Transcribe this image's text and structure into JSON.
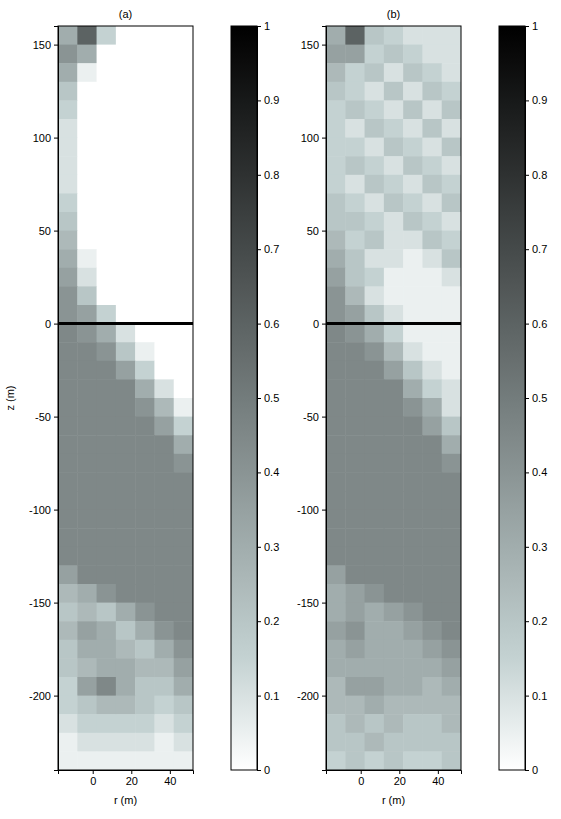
{
  "chart_data": [
    {
      "type": "heatmap",
      "title": "(a)",
      "xlabel": "r (m)",
      "ylabel": "z (m)",
      "xlim": [
        -18,
        52
      ],
      "ylim": [
        -240,
        160
      ],
      "xticks": [
        0,
        20,
        40
      ],
      "yticks": [
        -200,
        -150,
        -100,
        -50,
        0,
        50,
        100,
        150
      ],
      "hline": 0,
      "x": [
        -13,
        -3,
        7,
        17,
        27,
        37,
        47
      ],
      "y": [
        155,
        145,
        135,
        125,
        115,
        105,
        95,
        85,
        75,
        65,
        55,
        45,
        35,
        25,
        15,
        5,
        -5,
        -15,
        -25,
        -35,
        -45,
        -55,
        -65,
        -75,
        -85,
        -95,
        -105,
        -115,
        -125,
        -135,
        -145,
        -155,
        -165,
        -175,
        -185,
        -195,
        -205,
        -215,
        -225,
        -235
      ],
      "cells": [
        [
          0.3,
          0.6,
          0.15,
          0,
          0,
          0,
          0
        ],
        [
          0.4,
          0.3,
          0,
          0,
          0,
          0,
          0
        ],
        [
          0.3,
          0.05,
          0,
          0,
          0,
          0,
          0
        ],
        [
          0.2,
          0,
          0,
          0,
          0,
          0,
          0
        ],
        [
          0.15,
          0,
          0,
          0,
          0,
          0,
          0
        ],
        [
          0.1,
          0,
          0,
          0,
          0,
          0,
          0
        ],
        [
          0.1,
          0,
          0,
          0,
          0,
          0,
          0
        ],
        [
          0.1,
          0,
          0,
          0,
          0,
          0,
          0
        ],
        [
          0.1,
          0,
          0,
          0,
          0,
          0,
          0
        ],
        [
          0.15,
          0,
          0,
          0,
          0,
          0,
          0
        ],
        [
          0.2,
          0,
          0,
          0,
          0,
          0,
          0
        ],
        [
          0.25,
          0,
          0,
          0,
          0,
          0,
          0
        ],
        [
          0.3,
          0.05,
          0,
          0,
          0,
          0,
          0
        ],
        [
          0.35,
          0.1,
          0,
          0,
          0,
          0,
          0
        ],
        [
          0.4,
          0.2,
          0,
          0,
          0,
          0,
          0
        ],
        [
          0.4,
          0.35,
          0.15,
          0,
          0,
          0,
          0
        ],
        [
          0.45,
          0.4,
          0.3,
          0.1,
          0,
          0,
          0
        ],
        [
          0.45,
          0.45,
          0.4,
          0.2,
          0.05,
          0,
          0
        ],
        [
          0.45,
          0.45,
          0.45,
          0.35,
          0.15,
          0,
          0
        ],
        [
          0.45,
          0.45,
          0.45,
          0.45,
          0.3,
          0.1,
          0
        ],
        [
          0.45,
          0.45,
          0.45,
          0.45,
          0.4,
          0.25,
          0.05
        ],
        [
          0.45,
          0.45,
          0.45,
          0.45,
          0.45,
          0.35,
          0.15
        ],
        [
          0.45,
          0.45,
          0.45,
          0.45,
          0.45,
          0.45,
          0.3
        ],
        [
          0.45,
          0.45,
          0.45,
          0.45,
          0.45,
          0.45,
          0.4
        ],
        [
          0.45,
          0.45,
          0.45,
          0.45,
          0.45,
          0.45,
          0.45
        ],
        [
          0.45,
          0.45,
          0.45,
          0.45,
          0.45,
          0.45,
          0.45
        ],
        [
          0.45,
          0.45,
          0.45,
          0.45,
          0.45,
          0.45,
          0.45
        ],
        [
          0.45,
          0.45,
          0.45,
          0.45,
          0.45,
          0.45,
          0.45
        ],
        [
          0.45,
          0.45,
          0.45,
          0.45,
          0.45,
          0.45,
          0.45
        ],
        [
          0.35,
          0.45,
          0.45,
          0.45,
          0.45,
          0.45,
          0.45
        ],
        [
          0.25,
          0.3,
          0.4,
          0.45,
          0.45,
          0.45,
          0.45
        ],
        [
          0.2,
          0.25,
          0.2,
          0.3,
          0.4,
          0.45,
          0.45
        ],
        [
          0.25,
          0.35,
          0.3,
          0.2,
          0.3,
          0.4,
          0.45
        ],
        [
          0.2,
          0.3,
          0.3,
          0.25,
          0.2,
          0.3,
          0.4
        ],
        [
          0.2,
          0.25,
          0.3,
          0.3,
          0.25,
          0.25,
          0.35
        ],
        [
          0.15,
          0.35,
          0.45,
          0.3,
          0.2,
          0.2,
          0.3
        ],
        [
          0.15,
          0.2,
          0.25,
          0.25,
          0.2,
          0.15,
          0.2
        ],
        [
          0.1,
          0.15,
          0.15,
          0.15,
          0.15,
          0.1,
          0.15
        ],
        [
          0.05,
          0.1,
          0.1,
          0.1,
          0.1,
          0.05,
          0.1
        ],
        [
          0.05,
          0.05,
          0.05,
          0.05,
          0.05,
          0.05,
          0.05
        ]
      ],
      "colorbar": {
        "range": [
          0,
          1
        ],
        "ticks": [
          0,
          0.1,
          0.2,
          0.3,
          0.4,
          0.5,
          0.6,
          0.7,
          0.8,
          0.9,
          1
        ]
      }
    },
    {
      "type": "heatmap",
      "title": "(b)",
      "xlabel": "r (m)",
      "xlim": [
        -18,
        52
      ],
      "ylim": [
        -240,
        160
      ],
      "xticks": [
        0,
        20,
        40
      ],
      "yticks": [
        -200,
        -150,
        -100,
        -50,
        0,
        50,
        100,
        150
      ],
      "hline": 0,
      "x": [
        -13,
        -3,
        7,
        17,
        27,
        37,
        47
      ],
      "y": [
        155,
        145,
        135,
        125,
        115,
        105,
        95,
        85,
        75,
        65,
        55,
        45,
        35,
        25,
        15,
        5,
        -5,
        -15,
        -25,
        -35,
        -45,
        -55,
        -65,
        -75,
        -85,
        -95,
        -105,
        -115,
        -125,
        -135,
        -145,
        -155,
        -165,
        -175,
        -185,
        -195,
        -205,
        -215,
        -225,
        -235
      ],
      "cells": [
        [
          0.3,
          0.6,
          0.2,
          0.15,
          0.1,
          0.1,
          0.1
        ],
        [
          0.35,
          0.35,
          0.15,
          0.2,
          0.15,
          0.1,
          0.1
        ],
        [
          0.25,
          0.15,
          0.2,
          0.1,
          0.2,
          0.15,
          0.1
        ],
        [
          0.2,
          0.15,
          0.1,
          0.2,
          0.1,
          0.2,
          0.15
        ],
        [
          0.15,
          0.2,
          0.15,
          0.1,
          0.2,
          0.1,
          0.2
        ],
        [
          0.15,
          0.1,
          0.2,
          0.15,
          0.1,
          0.2,
          0.1
        ],
        [
          0.15,
          0.15,
          0.1,
          0.2,
          0.15,
          0.1,
          0.2
        ],
        [
          0.15,
          0.2,
          0.15,
          0.1,
          0.2,
          0.15,
          0.1
        ],
        [
          0.15,
          0.1,
          0.2,
          0.15,
          0.1,
          0.2,
          0.15
        ],
        [
          0.2,
          0.15,
          0.1,
          0.2,
          0.15,
          0.1,
          0.2
        ],
        [
          0.2,
          0.2,
          0.15,
          0.1,
          0.2,
          0.15,
          0.1
        ],
        [
          0.25,
          0.15,
          0.2,
          0.1,
          0.1,
          0.2,
          0.15
        ],
        [
          0.3,
          0.2,
          0.1,
          0.1,
          0.05,
          0.1,
          0.2
        ],
        [
          0.35,
          0.2,
          0.15,
          0.05,
          0.05,
          0.05,
          0.1
        ],
        [
          0.4,
          0.25,
          0.1,
          0.05,
          0.05,
          0.05,
          0.05
        ],
        [
          0.4,
          0.35,
          0.2,
          0.1,
          0.05,
          0.05,
          0.05
        ],
        [
          0.45,
          0.4,
          0.3,
          0.15,
          0.05,
          0.05,
          0.05
        ],
        [
          0.45,
          0.45,
          0.4,
          0.25,
          0.1,
          0.05,
          0.05
        ],
        [
          0.45,
          0.45,
          0.45,
          0.35,
          0.2,
          0.1,
          0.05
        ],
        [
          0.45,
          0.45,
          0.45,
          0.45,
          0.3,
          0.15,
          0.1
        ],
        [
          0.45,
          0.45,
          0.45,
          0.45,
          0.4,
          0.3,
          0.1
        ],
        [
          0.45,
          0.45,
          0.45,
          0.45,
          0.45,
          0.35,
          0.2
        ],
        [
          0.45,
          0.45,
          0.45,
          0.45,
          0.45,
          0.45,
          0.3
        ],
        [
          0.45,
          0.45,
          0.45,
          0.45,
          0.45,
          0.45,
          0.4
        ],
        [
          0.45,
          0.45,
          0.45,
          0.45,
          0.45,
          0.45,
          0.45
        ],
        [
          0.45,
          0.45,
          0.45,
          0.45,
          0.45,
          0.45,
          0.45
        ],
        [
          0.45,
          0.45,
          0.45,
          0.45,
          0.45,
          0.45,
          0.45
        ],
        [
          0.45,
          0.45,
          0.45,
          0.45,
          0.45,
          0.45,
          0.45
        ],
        [
          0.45,
          0.45,
          0.45,
          0.45,
          0.45,
          0.45,
          0.45
        ],
        [
          0.35,
          0.45,
          0.45,
          0.45,
          0.45,
          0.45,
          0.45
        ],
        [
          0.3,
          0.35,
          0.4,
          0.45,
          0.45,
          0.45,
          0.45
        ],
        [
          0.3,
          0.35,
          0.3,
          0.35,
          0.4,
          0.45,
          0.45
        ],
        [
          0.35,
          0.4,
          0.3,
          0.3,
          0.35,
          0.4,
          0.45
        ],
        [
          0.3,
          0.35,
          0.3,
          0.3,
          0.3,
          0.35,
          0.4
        ],
        [
          0.3,
          0.3,
          0.3,
          0.3,
          0.3,
          0.3,
          0.35
        ],
        [
          0.25,
          0.35,
          0.35,
          0.3,
          0.3,
          0.25,
          0.3
        ],
        [
          0.25,
          0.25,
          0.3,
          0.25,
          0.25,
          0.25,
          0.25
        ],
        [
          0.2,
          0.25,
          0.2,
          0.25,
          0.2,
          0.2,
          0.25
        ],
        [
          0.2,
          0.2,
          0.25,
          0.2,
          0.2,
          0.2,
          0.2
        ],
        [
          0.15,
          0.2,
          0.15,
          0.2,
          0.15,
          0.15,
          0.2
        ]
      ],
      "colorbar": {
        "range": [
          0,
          1
        ],
        "ticks": [
          0,
          0.1,
          0.2,
          0.3,
          0.4,
          0.5,
          0.6,
          0.7,
          0.8,
          0.9,
          1
        ]
      }
    }
  ]
}
